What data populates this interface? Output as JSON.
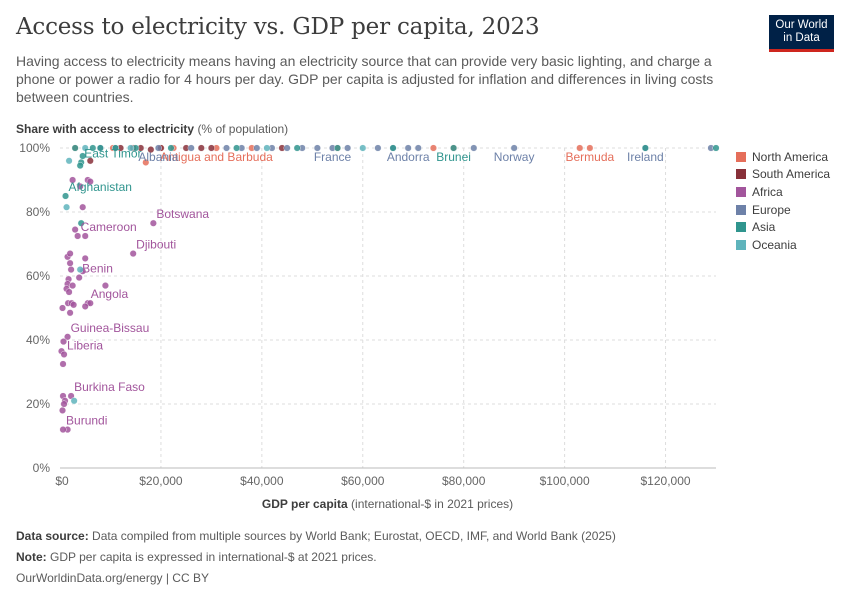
{
  "header": {
    "title": "Access to electricity vs. GDP per capita, 2023",
    "subtitle": "Having access to electricity means having an electricity source that can provide very basic lighting, and charge a phone or power a radio for 4 hours per day. GDP per capita is adjusted for inflation and differences in living costs between countries.",
    "logo_line1": "Our World",
    "logo_line2": "in Data"
  },
  "axes": {
    "y_label_bold": "Share with access to electricity",
    "y_label_unit": "(% of population)",
    "x_label_bold": "GDP per capita",
    "x_label_unit": "(international-$ in 2021 prices)"
  },
  "footer": {
    "source_label": "Data source:",
    "source_text": "Data compiled from multiple sources by World Bank; Eurostat, OECD, IMF, and World Bank (2025)",
    "note_label": "Note:",
    "note_text": "GDP per capita is expressed in international-$ at 2021 prices.",
    "credit": "OurWorldinData.org/energy | CC BY"
  },
  "chart_data": {
    "type": "scatter",
    "title": "Access to electricity vs. GDP per capita, 2023",
    "xlabel": "GDP per capita (international-$ in 2021 prices)",
    "ylabel": "Share with access to electricity (% of population)",
    "xlim": [
      0,
      130000
    ],
    "ylim": [
      0,
      100
    ],
    "x_ticks": [
      0,
      20000,
      40000,
      60000,
      80000,
      100000,
      120000
    ],
    "x_tick_labels": [
      "$0",
      "$20,000",
      "$40,000",
      "$60,000",
      "$80,000",
      "$100,000",
      "$120,000"
    ],
    "y_ticks": [
      0,
      20,
      40,
      60,
      80,
      100
    ],
    "y_tick_labels": [
      "0%",
      "20%",
      "40%",
      "60%",
      "80%",
      "100%"
    ],
    "grid": true,
    "legend_position": "right",
    "series": [
      {
        "name": "North America",
        "color": "#e56e5a",
        "points": [
          {
            "x": 3000,
            "y": 100
          },
          {
            "x": 10500,
            "y": 100
          },
          {
            "x": 17000,
            "y": 95.5
          },
          {
            "x": 20000,
            "y": 100
          },
          {
            "x": 22500,
            "y": 100
          },
          {
            "x": 31000,
            "y": 100,
            "label": "Antigua and Barbuda"
          },
          {
            "x": 38000,
            "y": 100
          },
          {
            "x": 55000,
            "y": 100
          },
          {
            "x": 74000,
            "y": 100
          },
          {
            "x": 78000,
            "y": 100
          },
          {
            "x": 103000,
            "y": 100
          },
          {
            "x": 105000,
            "y": 100,
            "label": "Bermuda"
          }
        ]
      },
      {
        "name": "South America",
        "color": "#883039",
        "points": [
          {
            "x": 6000,
            "y": 96
          },
          {
            "x": 12000,
            "y": 100
          },
          {
            "x": 14500,
            "y": 100
          },
          {
            "x": 16000,
            "y": 100
          },
          {
            "x": 18000,
            "y": 99.5
          },
          {
            "x": 20000,
            "y": 100
          },
          {
            "x": 25000,
            "y": 100
          },
          {
            "x": 28000,
            "y": 100
          },
          {
            "x": 30000,
            "y": 100
          },
          {
            "x": 44000,
            "y": 100
          }
        ]
      },
      {
        "name": "Africa",
        "color": "#a2559c",
        "points": [
          {
            "x": 4000,
            "y": 88
          },
          {
            "x": 5500,
            "y": 90
          },
          {
            "x": 6000,
            "y": 89.5
          },
          {
            "x": 2500,
            "y": 90
          },
          {
            "x": 4500,
            "y": 81.5
          },
          {
            "x": 18500,
            "y": 76.5,
            "label": "Botswana"
          },
          {
            "x": 3000,
            "y": 74.5
          },
          {
            "x": 5000,
            "y": 72.5
          },
          {
            "x": 3500,
            "y": 72.5,
            "label": "Cameroon"
          },
          {
            "x": 14500,
            "y": 67,
            "label": "Djibouti"
          },
          {
            "x": 1500,
            "y": 66
          },
          {
            "x": 2000,
            "y": 67
          },
          {
            "x": 5000,
            "y": 65.5
          },
          {
            "x": 2000,
            "y": 64
          },
          {
            "x": 2200,
            "y": 62
          },
          {
            "x": 4500,
            "y": 61.5
          },
          {
            "x": 1700,
            "y": 59
          },
          {
            "x": 3800,
            "y": 59.5,
            "label": "Benin"
          },
          {
            "x": 1500,
            "y": 57.5
          },
          {
            "x": 2500,
            "y": 57
          },
          {
            "x": 1300,
            "y": 56
          },
          {
            "x": 9000,
            "y": 57
          },
          {
            "x": 1800,
            "y": 55
          },
          {
            "x": 1600,
            "y": 51.5
          },
          {
            "x": 2300,
            "y": 51.5
          },
          {
            "x": 2700,
            "y": 51
          },
          {
            "x": 5500,
            "y": 51.5,
            "label": "Angola"
          },
          {
            "x": 6000,
            "y": 51.5
          },
          {
            "x": 5000,
            "y": 50.5
          },
          {
            "x": 500,
            "y": 50
          },
          {
            "x": 2000,
            "y": 48.5
          },
          {
            "x": 1500,
            "y": 41,
            "label": "Guinea-Bissau"
          },
          {
            "x": 700,
            "y": 39.5
          },
          {
            "x": 300,
            "y": 36.5
          },
          {
            "x": 800,
            "y": 35.5,
            "label": "Liberia"
          },
          {
            "x": 600,
            "y": 32.5
          },
          {
            "x": 600,
            "y": 22.5
          },
          {
            "x": 1000,
            "y": 21
          },
          {
            "x": 2200,
            "y": 22.5,
            "label": "Burkina Faso"
          },
          {
            "x": 800,
            "y": 20
          },
          {
            "x": 500,
            "y": 18
          },
          {
            "x": 1500,
            "y": 12
          },
          {
            "x": 600,
            "y": 12,
            "label": "Burundi"
          }
        ]
      },
      {
        "name": "Europe",
        "color": "#6d81a8",
        "points": [
          {
            "x": 8000,
            "y": 100
          },
          {
            "x": 11000,
            "y": 100
          },
          {
            "x": 19500,
            "y": 100,
            "label": "Albania"
          },
          {
            "x": 26000,
            "y": 100
          },
          {
            "x": 33000,
            "y": 100
          },
          {
            "x": 36000,
            "y": 100
          },
          {
            "x": 39000,
            "y": 100
          },
          {
            "x": 42000,
            "y": 100
          },
          {
            "x": 45000,
            "y": 100
          },
          {
            "x": 48000,
            "y": 100
          },
          {
            "x": 51000,
            "y": 100
          },
          {
            "x": 54000,
            "y": 100,
            "label": "France"
          },
          {
            "x": 57000,
            "y": 100
          },
          {
            "x": 63000,
            "y": 100
          },
          {
            "x": 66000,
            "y": 100
          },
          {
            "x": 69000,
            "y": 100,
            "label": "Andorra"
          },
          {
            "x": 71000,
            "y": 100
          },
          {
            "x": 82000,
            "y": 100
          },
          {
            "x": 90000,
            "y": 100,
            "label": "Norway"
          },
          {
            "x": 116000,
            "y": 100,
            "label": "Ireland"
          },
          {
            "x": 129000,
            "y": 100
          }
        ]
      },
      {
        "name": "Asia",
        "color": "#30958e",
        "points": [
          {
            "x": 3000,
            "y": 100
          },
          {
            "x": 4200,
            "y": 95.5,
            "label": "East Timor"
          },
          {
            "x": 4500,
            "y": 97.5
          },
          {
            "x": 4000,
            "y": 94.5
          },
          {
            "x": 6500,
            "y": 100
          },
          {
            "x": 8000,
            "y": 100
          },
          {
            "x": 11000,
            "y": 100
          },
          {
            "x": 15000,
            "y": 100
          },
          {
            "x": 22000,
            "y": 100
          },
          {
            "x": 35000,
            "y": 100
          },
          {
            "x": 47000,
            "y": 100
          },
          {
            "x": 55000,
            "y": 100
          },
          {
            "x": 66000,
            "y": 100
          },
          {
            "x": 78000,
            "y": 100,
            "label": "Brunei"
          },
          {
            "x": 116000,
            "y": 100
          },
          {
            "x": 130000,
            "y": 100
          },
          {
            "x": 4200,
            "y": 76.5
          },
          {
            "x": 1100,
            "y": 85,
            "label": "Afghanistan"
          }
        ]
      },
      {
        "name": "Oceania",
        "color": "#5fb4bc",
        "points": [
          {
            "x": 1800,
            "y": 96
          },
          {
            "x": 5000,
            "y": 100
          },
          {
            "x": 14000,
            "y": 100
          },
          {
            "x": 41000,
            "y": 100
          },
          {
            "x": 60000,
            "y": 100
          },
          {
            "x": 1300,
            "y": 81.5
          },
          {
            "x": 4000,
            "y": 62
          },
          {
            "x": 2800,
            "y": 21
          }
        ]
      }
    ]
  }
}
